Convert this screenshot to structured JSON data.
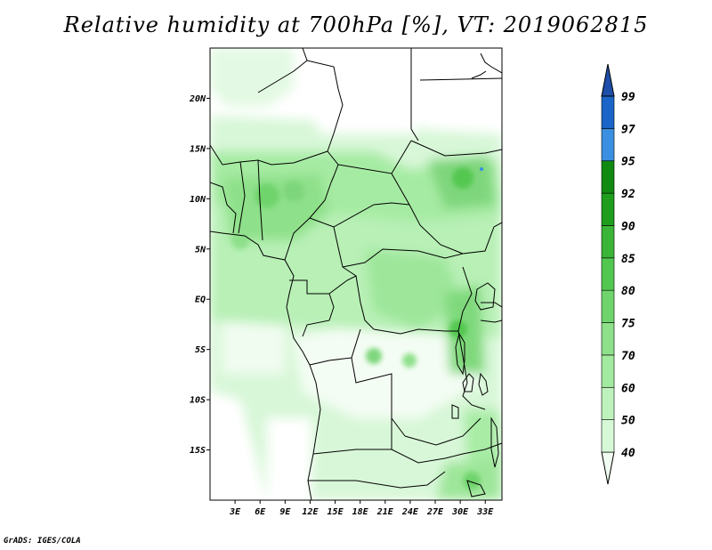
{
  "title": "Relative humidity at 700hPa [%], VT: 2019062815",
  "credit": "GrADS: IGES/COLA",
  "map": {
    "lon_range": [
      0,
      35
    ],
    "lat_range": [
      -20,
      25
    ],
    "lat_ticks": [
      {
        "value": 20,
        "label": "20N"
      },
      {
        "value": 15,
        "label": "15N"
      },
      {
        "value": 10,
        "label": "10N"
      },
      {
        "value": 5,
        "label": "5N"
      },
      {
        "value": 0,
        "label": "EQ"
      },
      {
        "value": -5,
        "label": "5S"
      },
      {
        "value": -10,
        "label": "10S"
      },
      {
        "value": -15,
        "label": "15S"
      }
    ],
    "lon_ticks": [
      {
        "value": 3,
        "label": "3E"
      },
      {
        "value": 6,
        "label": "6E"
      },
      {
        "value": 9,
        "label": "9E"
      },
      {
        "value": 12,
        "label": "12E"
      },
      {
        "value": 15,
        "label": "15E"
      },
      {
        "value": 18,
        "label": "18E"
      },
      {
        "value": 21,
        "label": "21E"
      },
      {
        "value": 24,
        "label": "24E"
      },
      {
        "value": 27,
        "label": "27E"
      },
      {
        "value": 30,
        "label": "30E"
      },
      {
        "value": 33,
        "label": "33E"
      }
    ]
  },
  "colorbar": {
    "levels": [
      40,
      50,
      60,
      70,
      75,
      80,
      85,
      90,
      92,
      95,
      97,
      99
    ],
    "labels": [
      "40",
      "50",
      "60",
      "70",
      "75",
      "80",
      "85",
      "90",
      "92",
      "95",
      "97",
      "99"
    ],
    "colors": [
      "#f0fdf0",
      "#d6f8d6",
      "#bdf2bd",
      "#a2ea9f",
      "#8ee08a",
      "#6fd46c",
      "#52c74f",
      "#3bb538",
      "#1e9e1c",
      "#118a12",
      "#3b8fe0",
      "#1b64c8",
      "#1e4ea8"
    ]
  }
}
